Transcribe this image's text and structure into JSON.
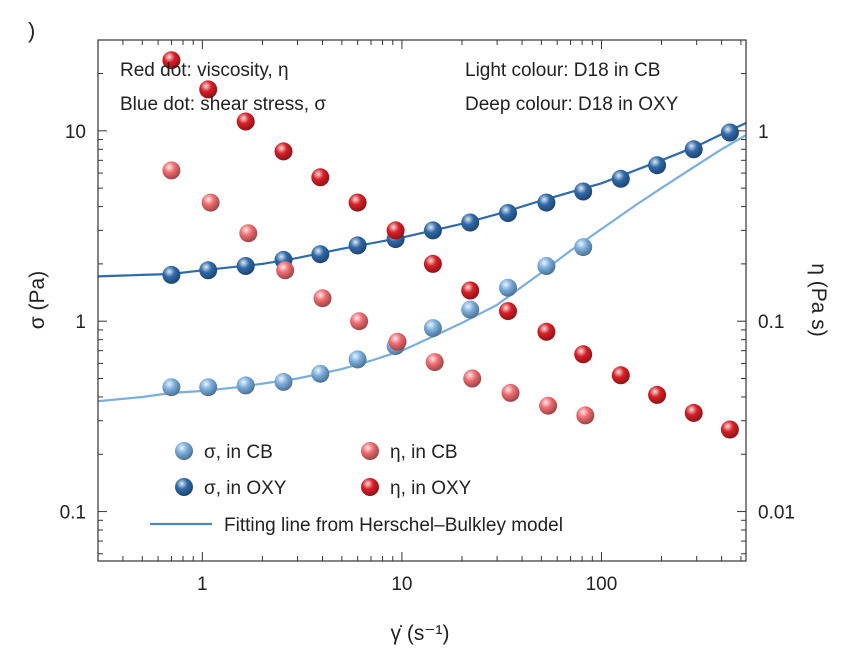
{
  "panel_mark": ")",
  "chart_data": {
    "type": "scatter",
    "x_scale": "log",
    "y_scale": "log",
    "y2_scale": "log",
    "xlabel": "γ̇ (s⁻¹)",
    "ylabel": "σ (Pa)",
    "y2label": "η (Pa s)",
    "xlim": [
      0.3,
      530
    ],
    "ylim": [
      0.055,
      30
    ],
    "y2lim": [
      0.0055,
      3.0
    ],
    "x_ticks": [
      {
        "value": 1,
        "label": "1"
      },
      {
        "value": 10,
        "label": "10"
      },
      {
        "value": 100,
        "label": "100"
      }
    ],
    "y_ticks": [
      {
        "value": 0.1,
        "label": "0.1"
      },
      {
        "value": 1,
        "label": "1"
      },
      {
        "value": 10,
        "label": "10"
      }
    ],
    "y2_ticks": [
      {
        "value": 0.01,
        "label": "0.01"
      },
      {
        "value": 0.1,
        "label": "0.1"
      },
      {
        "value": 1,
        "label": "1"
      }
    ],
    "annotations": [
      {
        "text": "Red dot: viscosity, η",
        "position": "top-left"
      },
      {
        "text": "Blue dot: shear stress, σ",
        "position": "top-left"
      },
      {
        "text": "Light colour: D18 in CB",
        "position": "top-right"
      },
      {
        "text": "Deep colour: D18 in OXY",
        "position": "top-right"
      }
    ],
    "legend": {
      "placement": "bottom-left",
      "entries": [
        {
          "label": "σ, in CB",
          "color": "#7aaede"
        },
        {
          "label": "η, in CB",
          "color": "#ef6c70"
        },
        {
          "label": "σ, in OXY",
          "color": "#2f6aaa"
        },
        {
          "label": "η, in OXY",
          "color": "#d91f26"
        }
      ],
      "line_label": "Fitting line from Herschel–Bulkley model",
      "line_color": "#4f86bf"
    },
    "series": [
      {
        "name": "σ, in CB",
        "axis": "left",
        "color": "#7aaede",
        "x": [
          0.7,
          1.07,
          1.65,
          2.55,
          3.9,
          6.0,
          9.3,
          14.3,
          22,
          34,
          53,
          81
        ],
        "y": [
          0.45,
          0.45,
          0.46,
          0.48,
          0.53,
          0.63,
          0.74,
          0.92,
          1.15,
          1.5,
          1.95,
          2.45
        ]
      },
      {
        "name": "σ, in OXY",
        "axis": "left",
        "color": "#2f6aaa",
        "x": [
          0.7,
          1.07,
          1.65,
          2.55,
          3.9,
          6.0,
          9.3,
          14.3,
          22,
          34,
          53,
          81,
          125,
          190,
          290,
          440
        ],
        "y": [
          1.75,
          1.85,
          1.95,
          2.1,
          2.25,
          2.5,
          2.7,
          3.0,
          3.3,
          3.7,
          4.2,
          4.8,
          5.6,
          6.6,
          8.0,
          9.8
        ]
      },
      {
        "name": "η, in CB",
        "axis": "right",
        "color": "#ef6c70",
        "x": [
          0.7,
          1.1,
          1.7,
          2.6,
          4.0,
          6.1,
          9.5,
          14.6,
          22.5,
          35,
          54,
          83
        ],
        "y": [
          0.62,
          0.42,
          0.29,
          0.185,
          0.132,
          0.1,
          0.078,
          0.061,
          0.05,
          0.042,
          0.036,
          0.032
        ]
      },
      {
        "name": "η, in OXY",
        "axis": "right",
        "color": "#d91f26",
        "x": [
          0.7,
          1.07,
          1.65,
          2.55,
          3.9,
          6.0,
          9.3,
          14.3,
          22,
          34,
          53,
          81,
          125,
          190,
          290,
          440
        ],
        "y": [
          2.35,
          1.65,
          1.12,
          0.78,
          0.57,
          0.42,
          0.3,
          0.2,
          0.145,
          0.113,
          0.088,
          0.067,
          0.052,
          0.041,
          0.033,
          0.027
        ]
      }
    ],
    "fits": [
      {
        "name": "Herschel–Bulkley fit (CB)",
        "axis": "left",
        "color": "#7aaede",
        "x": [
          0.3,
          0.5,
          0.7,
          1,
          1.5,
          2,
          3,
          5,
          7,
          10,
          15,
          20,
          30,
          50,
          70,
          100,
          150,
          200,
          300,
          400,
          530
        ],
        "y": [
          0.38,
          0.4,
          0.42,
          0.43,
          0.45,
          0.47,
          0.5,
          0.56,
          0.62,
          0.7,
          0.85,
          0.98,
          1.22,
          1.8,
          2.35,
          3.05,
          4.1,
          5.0,
          6.6,
          8.0,
          9.5
        ]
      },
      {
        "name": "Herschel–Bulkley fit (OXY)",
        "axis": "left",
        "color": "#2f6aaa",
        "x": [
          0.3,
          0.5,
          0.7,
          1,
          2,
          3,
          5,
          10,
          20,
          30,
          50,
          100,
          200,
          300,
          400,
          530
        ],
        "y": [
          1.72,
          1.75,
          1.77,
          1.85,
          2.0,
          2.15,
          2.4,
          2.75,
          3.25,
          3.65,
          4.3,
          5.3,
          7.0,
          8.3,
          9.6,
          11.0
        ]
      }
    ]
  }
}
